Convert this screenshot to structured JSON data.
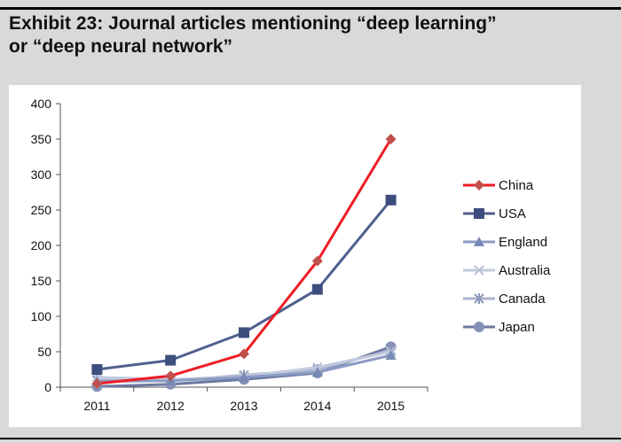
{
  "header": {
    "title_line1": "Exhibit 23: Journal articles mentioning “deep learning”",
    "title_line2": "or “deep neural network”"
  },
  "chart_data": {
    "type": "line",
    "title": "Exhibit 23: Journal articles mentioning “deep learning” or “deep neural network”",
    "xlabel": "",
    "ylabel": "",
    "x": [
      "2011",
      "2012",
      "2013",
      "2014",
      "2015"
    ],
    "ylim": [
      0,
      400
    ],
    "yticks": [
      0,
      50,
      100,
      150,
      200,
      250,
      300,
      350,
      400
    ],
    "grid": false,
    "legend_position": "right",
    "series": [
      {
        "name": "China",
        "values": [
          5,
          16,
          47,
          178,
          350
        ],
        "color": "#ee1c25",
        "line_color": "#ee1c25",
        "marker": "diamond",
        "marker_color": "#c0504d"
      },
      {
        "name": "USA",
        "values": [
          25,
          38,
          77,
          138,
          264
        ],
        "color": "#3d4e7e",
        "line_color": "#4f5f8f",
        "marker": "square",
        "marker_color": "#3d4e7e"
      },
      {
        "name": "England",
        "values": [
          8,
          9,
          14,
          21,
          45
        ],
        "color": "#7889b3",
        "line_color": "#8a9bc4",
        "marker": "triangle",
        "marker_color": "#7889b3"
      },
      {
        "name": "Australia",
        "values": [
          14,
          11,
          15,
          28,
          50
        ],
        "color": "#b9c1d8",
        "line_color": "#c3cadf",
        "marker": "x",
        "marker_color": "#b9c1d8"
      },
      {
        "name": "Canada",
        "values": [
          10,
          9,
          17,
          25,
          52
        ],
        "color": "#a0aac6",
        "line_color": "#aab3cd",
        "marker": "star",
        "marker_color": "#8e99bb"
      },
      {
        "name": "Japan",
        "values": [
          1,
          4,
          11,
          20,
          57
        ],
        "color": "#7f8bb0",
        "line_color": "#6c78a0",
        "marker": "circle",
        "marker_color": "#8591b5"
      }
    ]
  }
}
